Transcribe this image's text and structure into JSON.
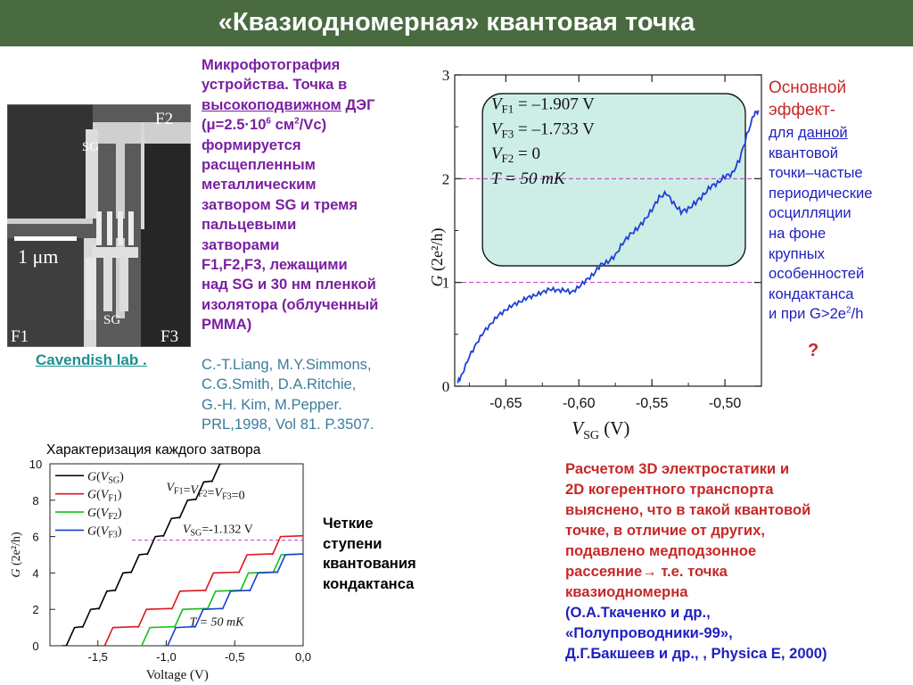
{
  "title": "«Квазиодномерная» квантовая точка",
  "micrograph": {
    "labels": {
      "f2": "F2",
      "sg_top": "SG",
      "scale": "1 μm",
      "sg_bottom": "SG",
      "f1": "F1",
      "f3": "F3"
    }
  },
  "description": {
    "line1": "Микрофотография",
    "line2": "устройства. Точка в",
    "line3_ul": "высокоподвижном",
    "line3_rest": " ДЭГ",
    "line4a": "(μ=2.5·10",
    "line4_sup1": "6",
    "line4b": " см",
    "line4_sup2": "2",
    "line4c": "/Vc)",
    "line5": "формируется",
    "line6": "расщепленным",
    "line7": "металлическим",
    "line8": "затвором SG и тремя",
    "line9": "пальцевыми",
    "line10": "затворами",
    "line11": "F1,F2,F3,  лежащими",
    "line12": "над SG и 30 нм пленкой",
    "line13": "изолятора (облученный",
    "line14": "PMMA)"
  },
  "cavendish": "Cavendish lab .",
  "references": {
    "r1": "C.-T.Liang, M.Y.Simmons,",
    "r2": "C.G.Smith, D.A.Ritchie,",
    "r3": "G.-H. Kim, M.Pepper.",
    "r4": "PRL,1998, Vol 81. P.3507."
  },
  "main_effect": {
    "title1": "Основной",
    "title2": "эффект-",
    "b1a": "для ",
    "b1u": "данной",
    "b2": "квантовой",
    "b3": "точки–частые",
    "b4": "периодические",
    "b5": "осцилляции",
    "b6": "на фоне",
    "b7": "крупных",
    "b8": "особенностей",
    "b9": "кондактанса",
    "b10a": " и при G>2e",
    "b10sup": "2",
    "b10b": "/h",
    "q": "?"
  },
  "calculation": {
    "l1": "Расчетом  3D электростатики и",
    "l2": "2D когерентного транспорта",
    "l3": "выяснено, что в такой квантовой",
    "l4": "точке, в отличие от других,",
    "l5": "подавлено  медподзонное",
    "l6": "рассеяние→ т.е. точка",
    "l7": "квазиодномерна",
    "l8": "(О.А.Ткаченко и др.,",
    "l9": "«Полупроводники-99»,",
    "l10": "Д.Г.Бакшеев и др., , Physica E, 2000)"
  },
  "char_title": "Характеризация каждого затвора",
  "steps_note": {
    "l1": "Четкие",
    "l2": "ступени",
    "l3": "квантования",
    "l4": "кондактанса"
  },
  "chart_data": [
    {
      "type": "line",
      "ylabel_main": "G",
      "ylabel_units": "(2e²/h)",
      "xlabel_main": "V",
      "xlabel_sub": "SG",
      "xlabel_units": "(V)",
      "xlim": [
        -0.685,
        -0.475
      ],
      "ylim": [
        0,
        3
      ],
      "x_ticks": [
        -0.65,
        -0.6,
        -0.55,
        -0.5
      ],
      "x_tick_labels": [
        "-0,65",
        "-0,60",
        "-0,55",
        "-0,50"
      ],
      "y_ticks": [
        0,
        1,
        2,
        3
      ],
      "y_tick_labels": [
        "0",
        "1",
        "2",
        "3"
      ],
      "reference_lines": [
        1,
        2
      ],
      "reference_line_color": "#c030c0",
      "inset": {
        "lines": [
          "V_F1 = –1.907 V",
          "V_F3 = –1.733 V",
          "V_F2 = 0",
          "T = 50 mK"
        ],
        "l1_v": "V",
        "l1_s": "F1",
        "l1_r": " = –1.907 V",
        "l2_v": "V",
        "l2_s": "F3",
        "l2_r": " = –1.733 V",
        "l3_v": "V",
        "l3_s": "F2",
        "l3_r": " = 0",
        "l4": "T = 50 mK",
        "fill": "#cdeee6"
      },
      "series": [
        {
          "color": "#1f3fd6",
          "x": [
            -0.683,
            -0.68,
            -0.675,
            -0.67,
            -0.665,
            -0.66,
            -0.655,
            -0.65,
            -0.645,
            -0.64,
            -0.635,
            -0.63,
            -0.625,
            -0.62,
            -0.615,
            -0.61,
            -0.605,
            -0.6,
            -0.595,
            -0.59,
            -0.585,
            -0.58,
            -0.575,
            -0.57,
            -0.565,
            -0.56,
            -0.555,
            -0.55,
            -0.545,
            -0.54,
            -0.535,
            -0.53,
            -0.525,
            -0.52,
            -0.515,
            -0.51,
            -0.505,
            -0.5,
            -0.495,
            -0.49,
            -0.485,
            -0.48,
            -0.477
          ],
          "y": [
            0.03,
            0.12,
            0.28,
            0.42,
            0.52,
            0.61,
            0.68,
            0.74,
            0.78,
            0.82,
            0.85,
            0.88,
            0.9,
            0.94,
            0.92,
            0.93,
            0.9,
            0.96,
            1.02,
            1.08,
            1.17,
            1.2,
            1.26,
            1.38,
            1.46,
            1.52,
            1.6,
            1.7,
            1.82,
            1.86,
            1.76,
            1.68,
            1.71,
            1.77,
            1.84,
            1.92,
            1.96,
            2.02,
            2.05,
            2.18,
            2.42,
            2.62,
            2.66
          ]
        }
      ]
    },
    {
      "type": "line",
      "xlabel": "Voltage  (V)",
      "ylabel_main": "G",
      "ylabel_units": "(2e²/h)",
      "xlim": [
        -1.85,
        0.0
      ],
      "ylim": [
        0,
        10
      ],
      "x_ticks": [
        -1.5,
        -1.0,
        -0.5,
        0.0
      ],
      "x_tick_labels": [
        "-1,5",
        "-1,0",
        "-0,5",
        "0,0"
      ],
      "y_ticks": [
        0,
        2,
        4,
        6,
        8,
        10
      ],
      "y_tick_labels": [
        "0",
        "2",
        "4",
        "6",
        "8",
        "10"
      ],
      "annotations": {
        "equal": "V_F1=V_F2=V_F3=0",
        "vsg": "V_SG=-1.132 V",
        "temp": "T = 50 mK"
      },
      "reference_line": 5.8,
      "legend": [
        {
          "label": "G(V_SG)",
          "color": "#000000"
        },
        {
          "label": "G(V_F1)",
          "color": "#e0141e"
        },
        {
          "label": "G(V_F2)",
          "color": "#13c013"
        },
        {
          "label": "G(V_F3)",
          "color": "#1a3fd0"
        }
      ],
      "series": [
        {
          "name": "G(V_SG)",
          "color": "#000000",
          "onset": -1.73,
          "spacing": 0.118,
          "max_steps": 11
        },
        {
          "name": "G(V_F1)",
          "color": "#e0141e",
          "onset": -1.45,
          "spacing": 0.245,
          "max_steps": 6
        },
        {
          "name": "G(V_F2)",
          "color": "#13c013",
          "onset": -1.18,
          "spacing": 0.24,
          "max_steps": 6
        },
        {
          "name": "G(V_F3)",
          "color": "#1a3fd0",
          "onset": -0.99,
          "spacing": 0.2,
          "max_steps": 6
        }
      ]
    }
  ]
}
